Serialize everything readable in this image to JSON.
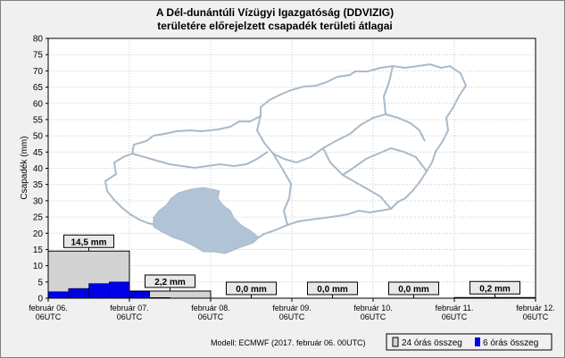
{
  "chart_data": {
    "type": "bar",
    "title": [
      "A Dél-dunántúli Vízügyi Igazgatóság (DDVIZIG)",
      "területére előrejelzett csapadék területi átlagai"
    ],
    "ylabel": "Csapadék (mm)",
    "xlabel": "",
    "ylim": [
      0,
      80
    ],
    "ytick_step": 5,
    "x_ticks": [
      {
        "date": "február 06.",
        "time": "06UTC"
      },
      {
        "date": "február 07.",
        "time": "06UTC"
      },
      {
        "date": "február 08.",
        "time": "06UTC"
      },
      {
        "date": "február 09.",
        "time": "06UTC"
      },
      {
        "date": "február 10.",
        "time": "06UTC"
      },
      {
        "date": "február 11.",
        "time": "06UTC"
      },
      {
        "date": "február 12.",
        "time": "06UTC"
      }
    ],
    "daily_series": {
      "name": "24 órás összeg",
      "color": "#d3d3d3",
      "values": [
        14.5,
        2.2,
        0.0,
        0.0,
        0.0,
        0.2
      ],
      "labels": [
        "14,5 mm",
        "2,2 mm",
        "0,0 mm",
        "0,0 mm",
        "0,0 mm",
        "0,2 mm"
      ]
    },
    "six_hour_series": {
      "name": "6 órás összeg",
      "color": "#0000e6",
      "values": [
        2.0,
        3.0,
        4.5,
        5.0,
        2.0,
        0.2,
        0.0,
        0.0,
        0,
        0,
        0,
        0,
        0,
        0,
        0,
        0,
        0,
        0,
        0,
        0,
        0,
        0,
        0.1,
        0.1
      ]
    },
    "grid": true,
    "legend_position": "bottom-right"
  },
  "model_note": "Modell: ECMWF (2017. február 06. 00UTC)"
}
